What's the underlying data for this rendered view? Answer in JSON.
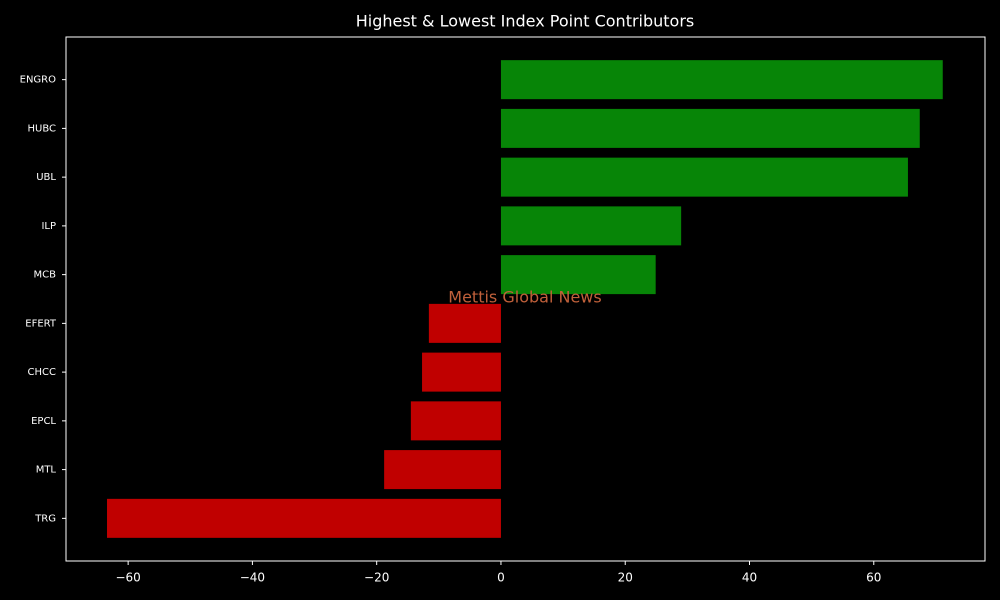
{
  "chart_data": {
    "type": "barh",
    "title": "Highest & Lowest Index Point Contributors",
    "annotation": "Mettis Global News",
    "categories": [
      "ENGRO",
      "HUBC",
      "UBL",
      "ILP",
      "MCB",
      "EFERT",
      "CHCC",
      "EPCL",
      "MTL",
      "TRG"
    ],
    "values": [
      71.1,
      67.4,
      65.5,
      29.0,
      24.9,
      -11.6,
      -12.7,
      -14.5,
      -18.8,
      -63.4
    ],
    "positive_color": "#078507",
    "negative_color": "#c00000",
    "annotation_color": "#c0603a",
    "xlim": [
      -70,
      77.9
    ],
    "xticks": [
      {
        "value": -60,
        "label": "−60"
      },
      {
        "value": -40,
        "label": "−40"
      },
      {
        "value": -20,
        "label": "−20"
      },
      0,
      20,
      40,
      60
    ]
  }
}
